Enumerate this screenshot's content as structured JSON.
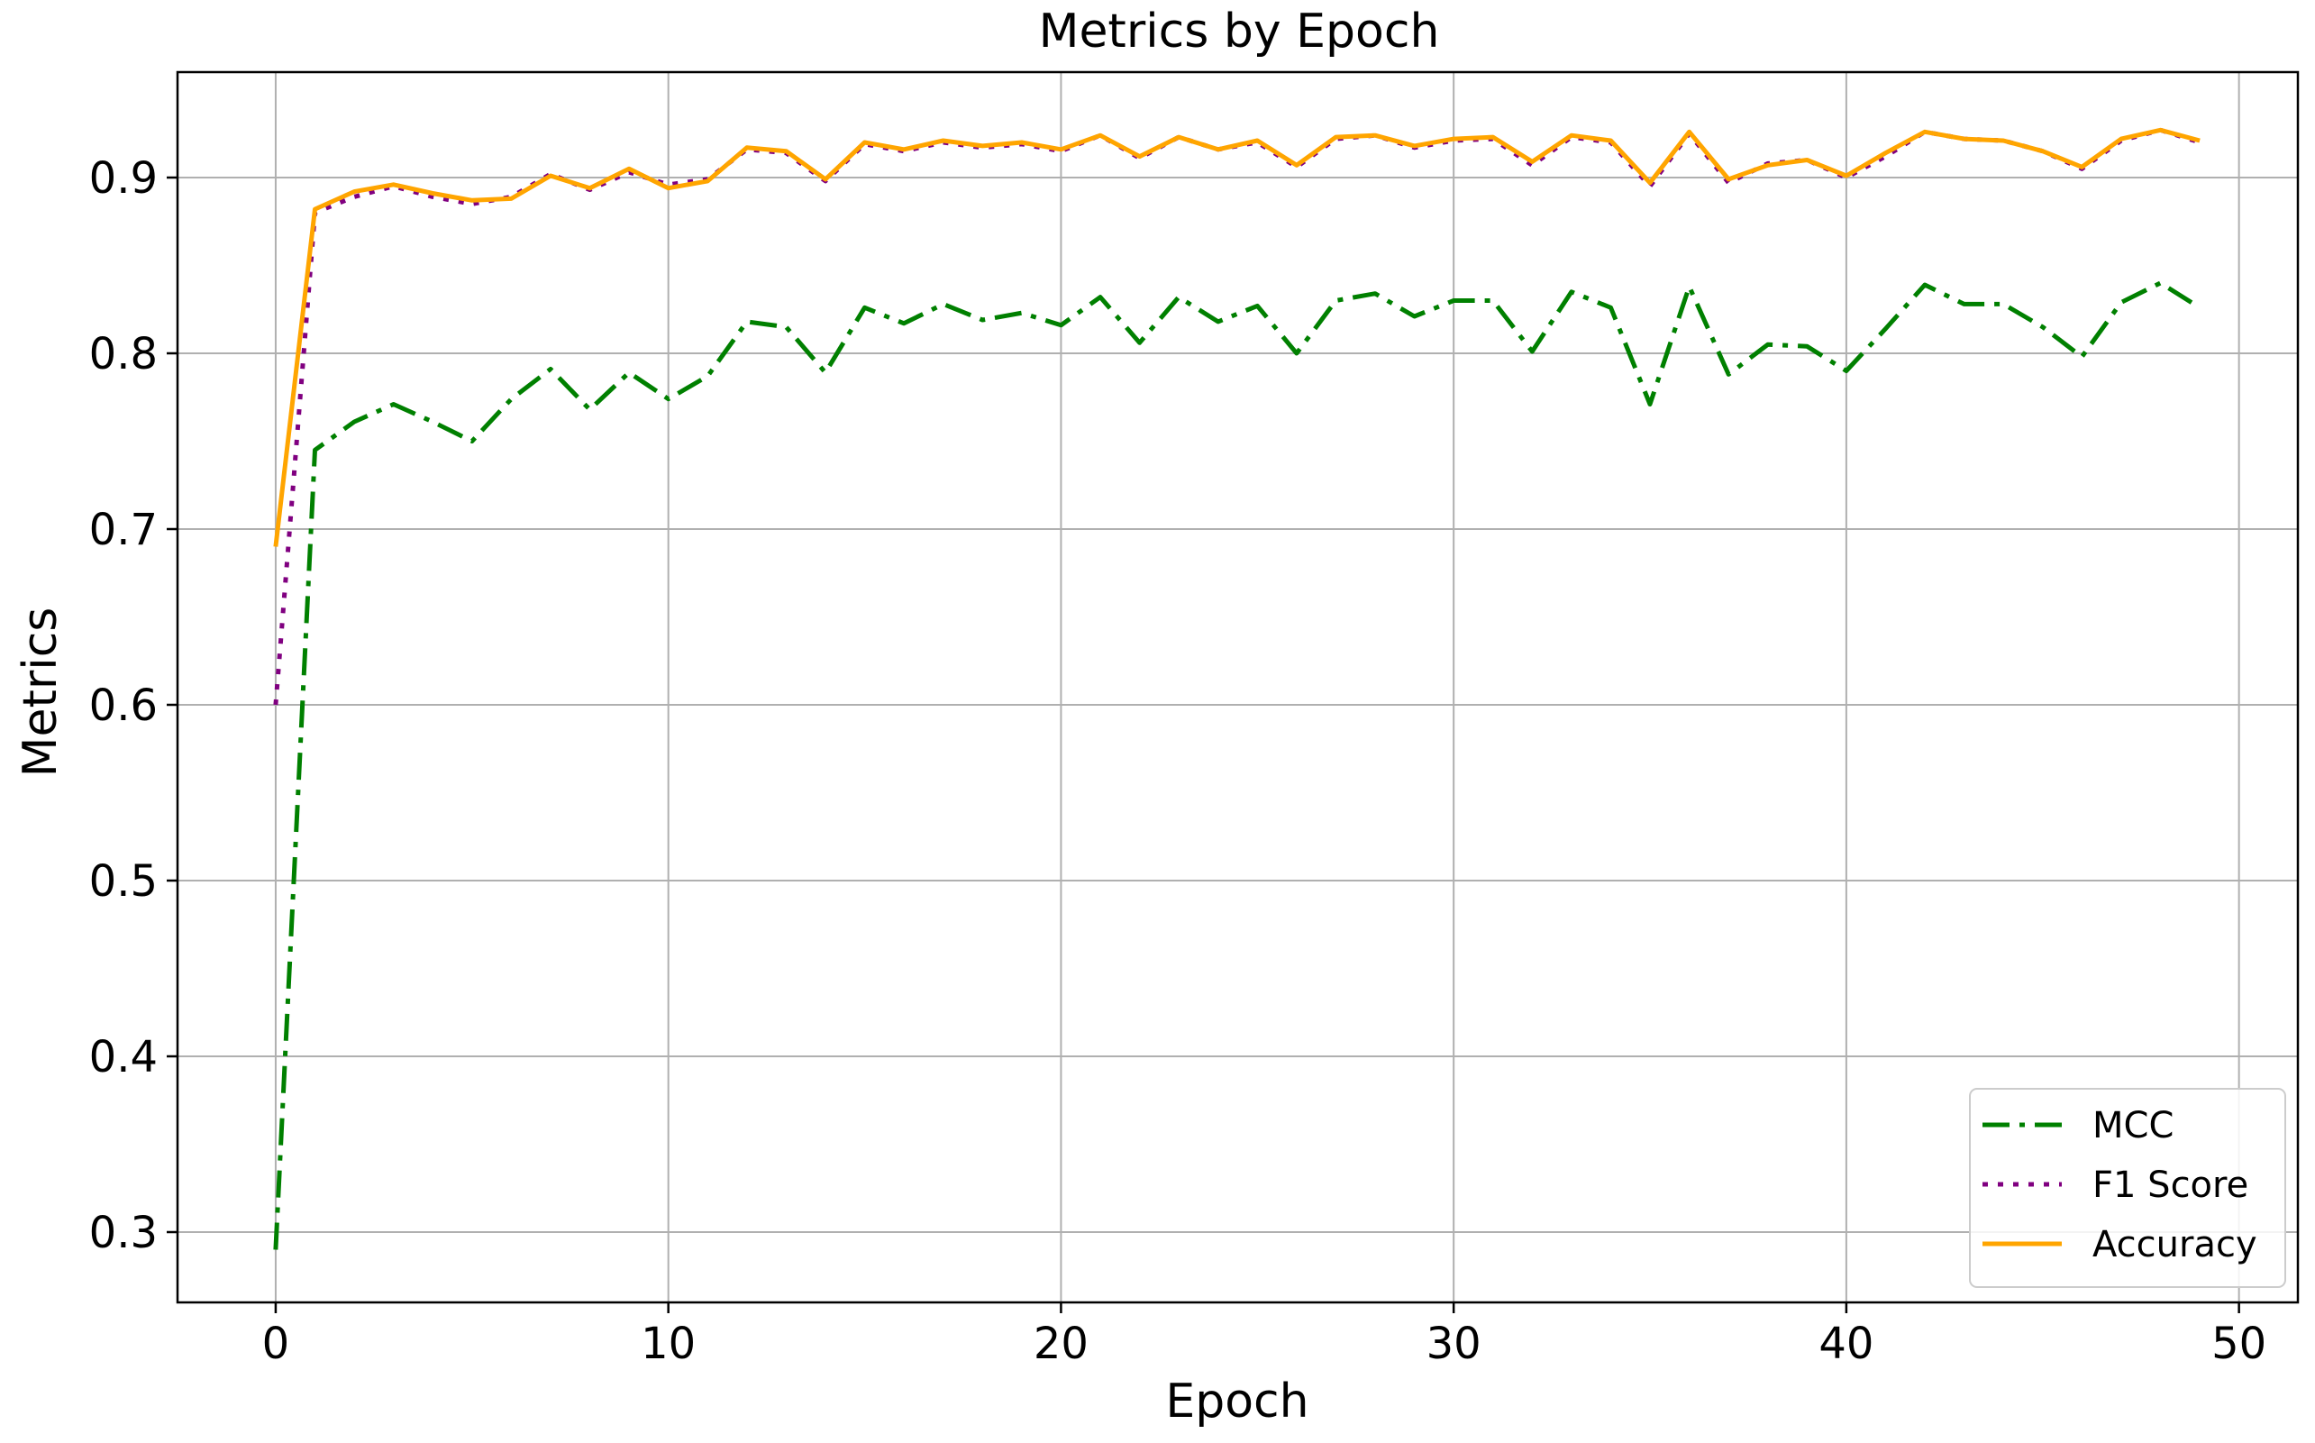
{
  "chart_data": {
    "type": "line",
    "title": "Metrics by Epoch",
    "xlabel": "Epoch",
    "ylabel": "Metrics",
    "xlim": [
      -2.5,
      51.5
    ],
    "ylim": [
      0.26,
      0.96
    ],
    "xticks": [
      0,
      10,
      20,
      30,
      40,
      50
    ],
    "yticks": [
      0.3,
      0.4,
      0.5,
      0.6,
      0.7,
      0.8,
      0.9
    ],
    "xtick_labels": [
      "0",
      "10",
      "20",
      "30",
      "40",
      "50"
    ],
    "ytick_labels": [
      "0.3",
      "0.4",
      "0.5",
      "0.6",
      "0.7",
      "0.8",
      "0.9"
    ],
    "grid": true,
    "legend_position": "lower-right",
    "x": [
      0,
      1,
      2,
      3,
      4,
      5,
      6,
      7,
      8,
      9,
      10,
      11,
      12,
      13,
      14,
      15,
      16,
      17,
      18,
      19,
      20,
      21,
      22,
      23,
      24,
      25,
      26,
      27,
      28,
      29,
      30,
      31,
      32,
      33,
      34,
      35,
      36,
      37,
      38,
      39,
      40,
      41,
      42,
      43,
      44,
      45,
      46,
      47,
      48,
      49
    ],
    "series": [
      {
        "name": "MCC",
        "color": "#008000",
        "dash": "dashdot",
        "values": [
          0.29,
          0.745,
          0.761,
          0.771,
          0.761,
          0.75,
          0.774,
          0.791,
          0.768,
          0.789,
          0.774,
          0.787,
          0.818,
          0.815,
          0.789,
          0.826,
          0.817,
          0.828,
          0.819,
          0.823,
          0.816,
          0.832,
          0.806,
          0.832,
          0.818,
          0.827,
          0.8,
          0.83,
          0.834,
          0.821,
          0.83,
          0.83,
          0.801,
          0.835,
          0.826,
          0.771,
          0.838,
          0.788,
          0.805,
          0.804,
          0.79,
          0.814,
          0.839,
          0.828,
          0.828,
          0.815,
          0.798,
          0.829,
          0.84,
          0.826
        ]
      },
      {
        "name": "F1 Score",
        "color": "#800080",
        "dash": "dotted",
        "values": [
          0.6,
          0.88,
          0.889,
          0.895,
          0.889,
          0.885,
          0.889,
          0.902,
          0.893,
          0.903,
          0.896,
          0.899,
          0.916,
          0.914,
          0.898,
          0.919,
          0.915,
          0.92,
          0.917,
          0.919,
          0.915,
          0.924,
          0.911,
          0.923,
          0.916,
          0.92,
          0.906,
          0.922,
          0.924,
          0.917,
          0.921,
          0.922,
          0.907,
          0.923,
          0.92,
          0.895,
          0.925,
          0.897,
          0.908,
          0.91,
          0.9,
          0.912,
          0.926,
          0.922,
          0.921,
          0.915,
          0.905,
          0.921,
          0.927,
          0.92
        ]
      },
      {
        "name": "Accuracy",
        "color": "#FFA500",
        "dash": "solid",
        "values": [
          0.69,
          0.882,
          0.892,
          0.896,
          0.891,
          0.887,
          0.888,
          0.901,
          0.894,
          0.905,
          0.894,
          0.898,
          0.917,
          0.915,
          0.899,
          0.92,
          0.916,
          0.921,
          0.918,
          0.92,
          0.916,
          0.924,
          0.912,
          0.923,
          0.916,
          0.921,
          0.907,
          0.923,
          0.924,
          0.918,
          0.922,
          0.923,
          0.909,
          0.924,
          0.921,
          0.897,
          0.926,
          0.899,
          0.907,
          0.91,
          0.901,
          0.914,
          0.926,
          0.922,
          0.921,
          0.915,
          0.906,
          0.922,
          0.927,
          0.921
        ]
      }
    ]
  }
}
